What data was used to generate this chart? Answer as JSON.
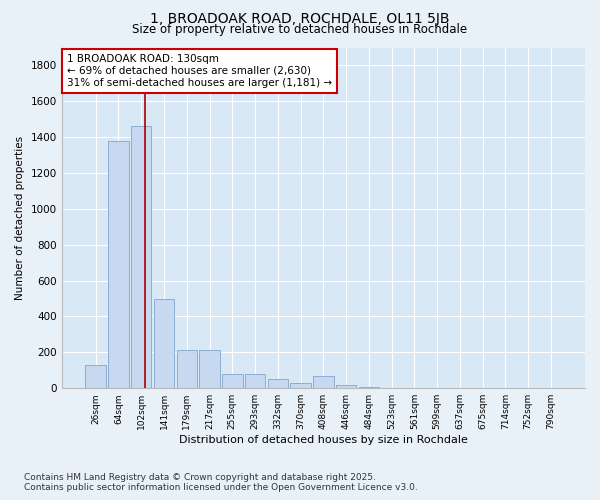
{
  "title_line1": "1, BROADOAK ROAD, ROCHDALE, OL11 5JB",
  "title_line2": "Size of property relative to detached houses in Rochdale",
  "xlabel": "Distribution of detached houses by size in Rochdale",
  "ylabel": "Number of detached properties",
  "categories": [
    "26sqm",
    "64sqm",
    "102sqm",
    "141sqm",
    "179sqm",
    "217sqm",
    "255sqm",
    "293sqm",
    "332sqm",
    "370sqm",
    "408sqm",
    "446sqm",
    "484sqm",
    "523sqm",
    "561sqm",
    "599sqm",
    "637sqm",
    "675sqm",
    "714sqm",
    "752sqm",
    "790sqm"
  ],
  "values": [
    130,
    1380,
    1460,
    500,
    215,
    215,
    80,
    80,
    50,
    30,
    70,
    20,
    5,
    2,
    0,
    0,
    0,
    0,
    0,
    0,
    0
  ],
  "bar_color": "#c6d9f1",
  "bar_edgecolor": "#8eadd4",
  "vline_x": 2.15,
  "vline_color": "#aa0000",
  "annotation_text": "1 BROADOAK ROAD: 130sqm\n← 69% of detached houses are smaller (2,630)\n31% of semi-detached houses are larger (1,181) →",
  "annotation_box_edgecolor": "#cc0000",
  "annotation_fontsize": 7.5,
  "ylim": [
    0,
    1900
  ],
  "yticks": [
    0,
    200,
    400,
    600,
    800,
    1000,
    1200,
    1400,
    1600,
    1800
  ],
  "background_color": "#e8f0f8",
  "plot_background_color": "#d8e8f5",
  "grid_color": "#ffffff",
  "footer_line1": "Contains HM Land Registry data © Crown copyright and database right 2025.",
  "footer_line2": "Contains public sector information licensed under the Open Government Licence v3.0.",
  "footer_fontsize": 6.5,
  "title1_fontsize": 10,
  "title2_fontsize": 8.5,
  "ylabel_fontsize": 7.5,
  "xlabel_fontsize": 8,
  "ytick_fontsize": 7.5,
  "xtick_fontsize": 6.5
}
